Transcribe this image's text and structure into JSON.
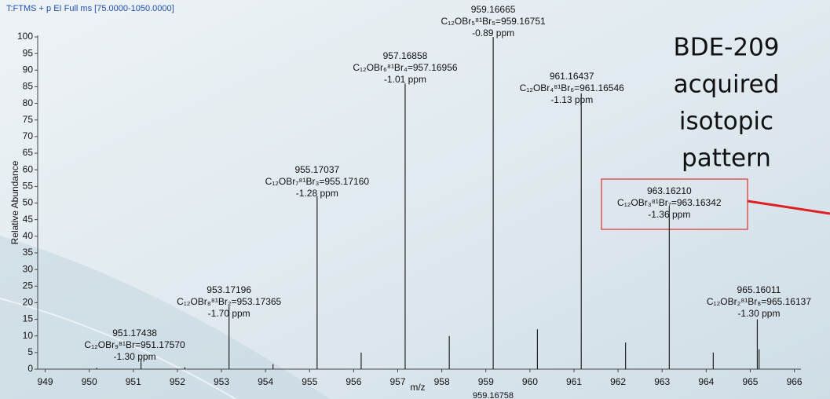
{
  "chart_data": {
    "type": "stem",
    "header": "T:FTMS + p EI Full ms [75.0000-1050.0000]",
    "x_label": "m/z",
    "y_label": "Relative Abundance",
    "x": [
      950.17,
      951.17438,
      952.17,
      953.17196,
      954.17,
      955.17037,
      956.17,
      957.16858,
      958.17,
      959.16665,
      960.17,
      961.16437,
      962.17,
      963.1621,
      964.16,
      965.16011,
      965.2
    ],
    "values": [
      0.4,
      3,
      0.6,
      19,
      1.5,
      52,
      5,
      86,
      10,
      100,
      12,
      83,
      8,
      49,
      5,
      15,
      6
    ],
    "color": "#222222",
    "xlim": [
      948.83,
      966.15
    ],
    "xticks": [
      949,
      950,
      951,
      952,
      953,
      954,
      955,
      956,
      957,
      958,
      959,
      960,
      961,
      962,
      963,
      964,
      965,
      966
    ],
    "ylim": [
      0,
      100
    ],
    "yticks": [
      0,
      5,
      10,
      15,
      20,
      25,
      30,
      35,
      40,
      45,
      50,
      55,
      60,
      65,
      70,
      75,
      80,
      85,
      90,
      95,
      100
    ],
    "annotations": [
      {
        "mass": "951.17438",
        "formula": "C₁₂OBr₉⁸¹Br=951.17570",
        "ppm": "-1.30 ppm"
      },
      {
        "mass": "953.17196",
        "formula": "C₁₂OBr₈⁸¹Br₂=953.17365",
        "ppm": "-1.70 ppm"
      },
      {
        "mass": "955.17037",
        "formula": "C₁₂OBr₇⁸¹Br₃=955.17160",
        "ppm": "-1.28 ppm"
      },
      {
        "mass": "957.16858",
        "formula": "C₁₂OBr₆⁸¹Br₄=957.16956",
        "ppm": "-1.01 ppm"
      },
      {
        "mass": "959.16665",
        "formula": "C₁₂OBr₅⁸¹Br₅=959.16751",
        "ppm": "-0.89 ppm"
      },
      {
        "mass": "961.16437",
        "formula": "C₁₂OBr₄⁸¹Br₆=961.16546",
        "ppm": "-1.13 ppm"
      },
      {
        "mass": "963.16210",
        "formula": "C₁₂OBr₃⁸¹Br₇=963.16342",
        "ppm": "-1.36 ppm"
      },
      {
        "mass": "965.16011",
        "formula": "C₁₂OBr₂⁸¹Br₈=965.16137",
        "ppm": "-1.30 ppm"
      }
    ],
    "bottom_label": "959.16758",
    "callout": [
      "BDE-209",
      "acquired",
      "isotopic",
      "pattern"
    ]
  }
}
